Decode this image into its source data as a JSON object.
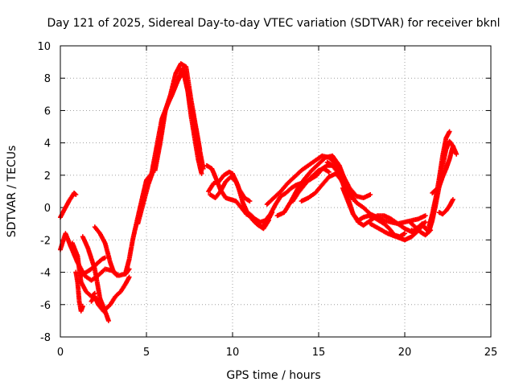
{
  "chart_data": {
    "type": "scatter",
    "title": "Day 121 of 2025, Sidereal Day-to-day VTEC variation (SDTVAR) for receiver bknl",
    "xlabel": "GPS time / hours",
    "ylabel": "SDTVAR / TECUs",
    "xlim": [
      0,
      25
    ],
    "ylim": [
      -8,
      10
    ],
    "xticks": [
      0,
      5,
      10,
      15,
      20,
      25
    ],
    "yticks": [
      -8,
      -6,
      -4,
      -2,
      0,
      2,
      4,
      6,
      8,
      10
    ],
    "grid": true,
    "marker": "+",
    "color": "#ff0000",
    "series": [
      {
        "name": "s1",
        "x": [
          0.0,
          0.3,
          0.5,
          0.8,
          0.9
        ],
        "y": [
          -0.6,
          0.0,
          0.4,
          0.9,
          0.8
        ]
      },
      {
        "name": "s2",
        "x": [
          0.0,
          0.3,
          0.6,
          1.0,
          1.4,
          1.8,
          2.2,
          2.6,
          3.0,
          3.4,
          3.8,
          4.0
        ],
        "y": [
          -2.6,
          -1.6,
          -2.4,
          -3.4,
          -4.2,
          -4.5,
          -4.2,
          -3.8,
          -3.9,
          -4.2,
          -4.1,
          -3.8
        ]
      },
      {
        "name": "s3",
        "x": [
          0.7,
          1.0,
          1.2,
          1.5,
          1.8,
          2.0
        ],
        "y": [
          -2.2,
          -3.0,
          -4.6,
          -5.2,
          -5.5,
          -5.3
        ]
      },
      {
        "name": "s4",
        "x": [
          1.3,
          1.6,
          2.0,
          2.3,
          2.7,
          2.8
        ],
        "y": [
          -1.8,
          -2.5,
          -3.8,
          -5.6,
          -6.7,
          -7.0
        ]
      },
      {
        "name": "s5",
        "x": [
          1.8,
          2.0,
          2.2,
          2.5,
          2.7
        ],
        "y": [
          -5.8,
          -5.5,
          -6.0,
          -6.4,
          -6.2
        ]
      },
      {
        "name": "s6",
        "x": [
          2.0,
          2.3,
          2.6,
          2.9,
          3.1,
          3.3
        ],
        "y": [
          -1.2,
          -1.6,
          -2.2,
          -3.4,
          -4.0,
          -4.2
        ]
      },
      {
        "name": "s7",
        "x": [
          1.2,
          1.5,
          1.8,
          2.1,
          2.4,
          2.6
        ],
        "y": [
          -4.2,
          -4.0,
          -3.8,
          -3.5,
          -3.2,
          -3.1
        ]
      },
      {
        "name": "s8",
        "x": [
          2.6,
          2.9,
          3.2,
          3.5,
          3.8,
          4.0
        ],
        "y": [
          -6.3,
          -6.0,
          -5.5,
          -5.2,
          -4.7,
          -4.3
        ]
      },
      {
        "name": "s9",
        "x": [
          0.9,
          1.0,
          1.1,
          1.2,
          1.3
        ],
        "y": [
          -4.0,
          -4.6,
          -5.8,
          -6.4,
          -6.1
        ]
      },
      {
        "name": "s10",
        "x": [
          3.8,
          4.0,
          4.2,
          4.5,
          4.8,
          5.0,
          5.3,
          5.6,
          5.9,
          6.2,
          6.5,
          6.8,
          7.1,
          7.4,
          7.6,
          7.8,
          8.0,
          8.2
        ],
        "y": [
          -4.0,
          -3.2,
          -2.0,
          -0.6,
          0.8,
          1.7,
          2.1,
          3.8,
          5.5,
          6.3,
          7.0,
          7.8,
          8.6,
          7.2,
          5.6,
          4.3,
          3.0,
          2.1
        ]
      },
      {
        "name": "s11",
        "x": [
          4.5,
          4.8,
          5.1,
          5.4,
          5.7,
          6.0,
          6.3,
          6.6,
          6.9,
          7.2,
          7.5,
          7.8,
          8.1,
          8.3
        ],
        "y": [
          -1.0,
          0.2,
          1.4,
          2.3,
          3.8,
          5.7,
          6.6,
          7.4,
          8.0,
          8.4,
          6.6,
          5.2,
          3.5,
          2.4
        ]
      },
      {
        "name": "s12",
        "x": [
          5.5,
          5.8,
          6.1,
          6.4,
          6.7,
          7.0,
          7.3,
          7.6,
          7.9,
          8.1
        ],
        "y": [
          2.3,
          4.0,
          6.0,
          7.0,
          8.3,
          8.9,
          8.7,
          6.6,
          4.8,
          3.6
        ]
      },
      {
        "name": "s13",
        "x": [
          8.5,
          8.8,
          9.0,
          9.3,
          9.6,
          9.9,
          10.2,
          10.5,
          10.8,
          11.1,
          11.4,
          11.7,
          12.0,
          12.3
        ],
        "y": [
          2.6,
          2.4,
          1.9,
          1.1,
          0.6,
          0.5,
          0.4,
          0.0,
          -0.4,
          -0.6,
          -1.0,
          -1.2,
          -0.9,
          -0.3
        ]
      },
      {
        "name": "s14",
        "x": [
          8.6,
          8.9,
          9.2,
          9.5,
          9.8,
          10.0,
          10.3,
          10.6,
          10.9,
          11.2,
          11.5,
          11.8,
          12.1
        ],
        "y": [
          1.0,
          1.5,
          1.6,
          2.0,
          2.2,
          2.1,
          1.4,
          0.3,
          -0.4,
          -0.8,
          -1.1,
          -1.3,
          -0.8
        ]
      },
      {
        "name": "s15",
        "x": [
          8.7,
          9.0,
          9.3,
          9.6,
          9.9,
          10.2,
          10.4,
          10.7,
          11.0
        ],
        "y": [
          0.8,
          0.6,
          1.0,
          1.6,
          1.9,
          1.6,
          1.1,
          0.6,
          0.4
        ]
      },
      {
        "name": "s16",
        "x": [
          11.0,
          11.3,
          11.6,
          11.9,
          12.2,
          12.5,
          12.8,
          13.1,
          13.4,
          13.7,
          14.0,
          14.3,
          14.6,
          14.9,
          15.2,
          15.5,
          15.8,
          16.1,
          16.4,
          16.7
        ],
        "y": [
          -0.4,
          -0.7,
          -0.9,
          -0.8,
          -0.4,
          0.2,
          0.7,
          0.9,
          1.2,
          1.4,
          1.5,
          1.6,
          1.8,
          2.0,
          2.4,
          2.6,
          2.6,
          2.4,
          2.0,
          1.4
        ]
      },
      {
        "name": "s17",
        "x": [
          12.0,
          12.4,
          12.8,
          13.2,
          13.6,
          14.0,
          14.4,
          14.8,
          15.2,
          15.6,
          16.0,
          16.4,
          16.8,
          17.2,
          17.6,
          18.0
        ],
        "y": [
          0.2,
          0.6,
          1.0,
          1.5,
          1.9,
          2.3,
          2.6,
          2.9,
          3.2,
          3.1,
          2.7,
          1.9,
          1.2,
          0.7,
          0.6,
          0.8
        ]
      },
      {
        "name": "s18",
        "x": [
          12.6,
          13.0,
          13.4,
          13.8,
          14.2,
          14.6,
          15.0,
          15.4,
          15.8,
          16.2,
          16.6,
          17.0
        ],
        "y": [
          -0.5,
          -0.3,
          0.4,
          1.2,
          1.8,
          2.3,
          2.7,
          3.1,
          3.2,
          2.6,
          1.5,
          0.5
        ]
      },
      {
        "name": "s19",
        "x": [
          13.5,
          13.8,
          14.1,
          14.4,
          14.7,
          15.0,
          15.3,
          15.6
        ],
        "y": [
          0.4,
          0.9,
          1.3,
          1.7,
          2.0,
          2.3,
          2.4,
          2.2
        ]
      },
      {
        "name": "s20",
        "x": [
          14.0,
          14.4,
          14.8,
          15.2,
          15.6,
          16.0,
          16.4,
          16.8,
          17.2,
          17.6,
          18.0,
          18.4,
          18.8,
          19.2,
          19.6,
          20.0,
          20.4,
          20.8,
          21.2
        ],
        "y": [
          0.4,
          0.6,
          0.9,
          1.4,
          1.9,
          2.1,
          1.6,
          0.9,
          0.3,
          0.0,
          -0.4,
          -0.6,
          -0.8,
          -0.9,
          -1.0,
          -0.9,
          -0.8,
          -0.7,
          -0.5
        ]
      },
      {
        "name": "s21",
        "x": [
          15.5,
          15.8,
          16.1,
          16.4,
          16.7,
          17.0,
          17.3,
          17.6,
          17.9,
          18.2,
          18.5,
          18.8,
          19.1,
          19.4,
          19.7,
          20.0
        ],
        "y": [
          2.8,
          2.6,
          2.2,
          1.5,
          0.6,
          -0.4,
          -0.8,
          -0.6,
          -0.5,
          -0.6,
          -0.8,
          -1.0,
          -1.3,
          -1.7,
          -1.8,
          -1.6
        ]
      },
      {
        "name": "s22",
        "x": [
          16.4,
          16.7,
          17.0,
          17.3,
          17.6,
          18.0,
          18.4,
          18.8,
          19.2,
          19.6,
          20.0,
          20.4,
          20.8,
          21.2
        ],
        "y": [
          1.2,
          0.4,
          -0.4,
          -0.9,
          -1.1,
          -0.8,
          -0.5,
          -0.5,
          -0.7,
          -1.0,
          -1.3,
          -1.5,
          -1.2,
          -0.9
        ]
      },
      {
        "name": "s23",
        "x": [
          18.0,
          18.5,
          19.0,
          19.5,
          20.0,
          20.4,
          20.8,
          21.1
        ],
        "y": [
          -1.0,
          -1.3,
          -1.6,
          -1.8,
          -2.0,
          -1.8,
          -1.4,
          -1.0
        ]
      },
      {
        "name": "s24",
        "x": [
          20.4,
          20.6,
          20.8,
          21.0,
          21.2,
          21.4,
          21.6,
          21.8,
          22.0,
          22.2,
          22.4,
          22.6,
          22.8,
          23.0
        ],
        "y": [
          -1.4,
          -1.6,
          -1.3,
          -1.0,
          -1.3,
          -1.5,
          -0.8,
          0.2,
          1.3,
          2.6,
          3.6,
          4.1,
          3.8,
          3.3
        ]
      },
      {
        "name": "s25",
        "x": [
          21.4,
          21.6,
          21.8,
          22.0,
          22.2,
          22.4,
          22.6
        ],
        "y": [
          -1.2,
          -0.4,
          0.6,
          1.8,
          3.2,
          4.3,
          4.7
        ]
      },
      {
        "name": "s26",
        "x": [
          21.6,
          21.8,
          22.0,
          22.2,
          22.4,
          22.6,
          22.8
        ],
        "y": [
          0.9,
          1.1,
          1.3,
          1.9,
          2.4,
          3.0,
          3.8
        ]
      },
      {
        "name": "s27",
        "x": [
          22.0,
          22.2,
          22.4,
          22.6,
          22.8
        ],
        "y": [
          -0.3,
          -0.4,
          -0.2,
          0.1,
          0.5
        ]
      },
      {
        "name": "s28",
        "x": [
          20.3,
          20.6,
          20.9,
          21.2,
          21.5
        ],
        "y": [
          -0.9,
          -1.2,
          -1.5,
          -1.7,
          -1.4
        ]
      }
    ]
  }
}
